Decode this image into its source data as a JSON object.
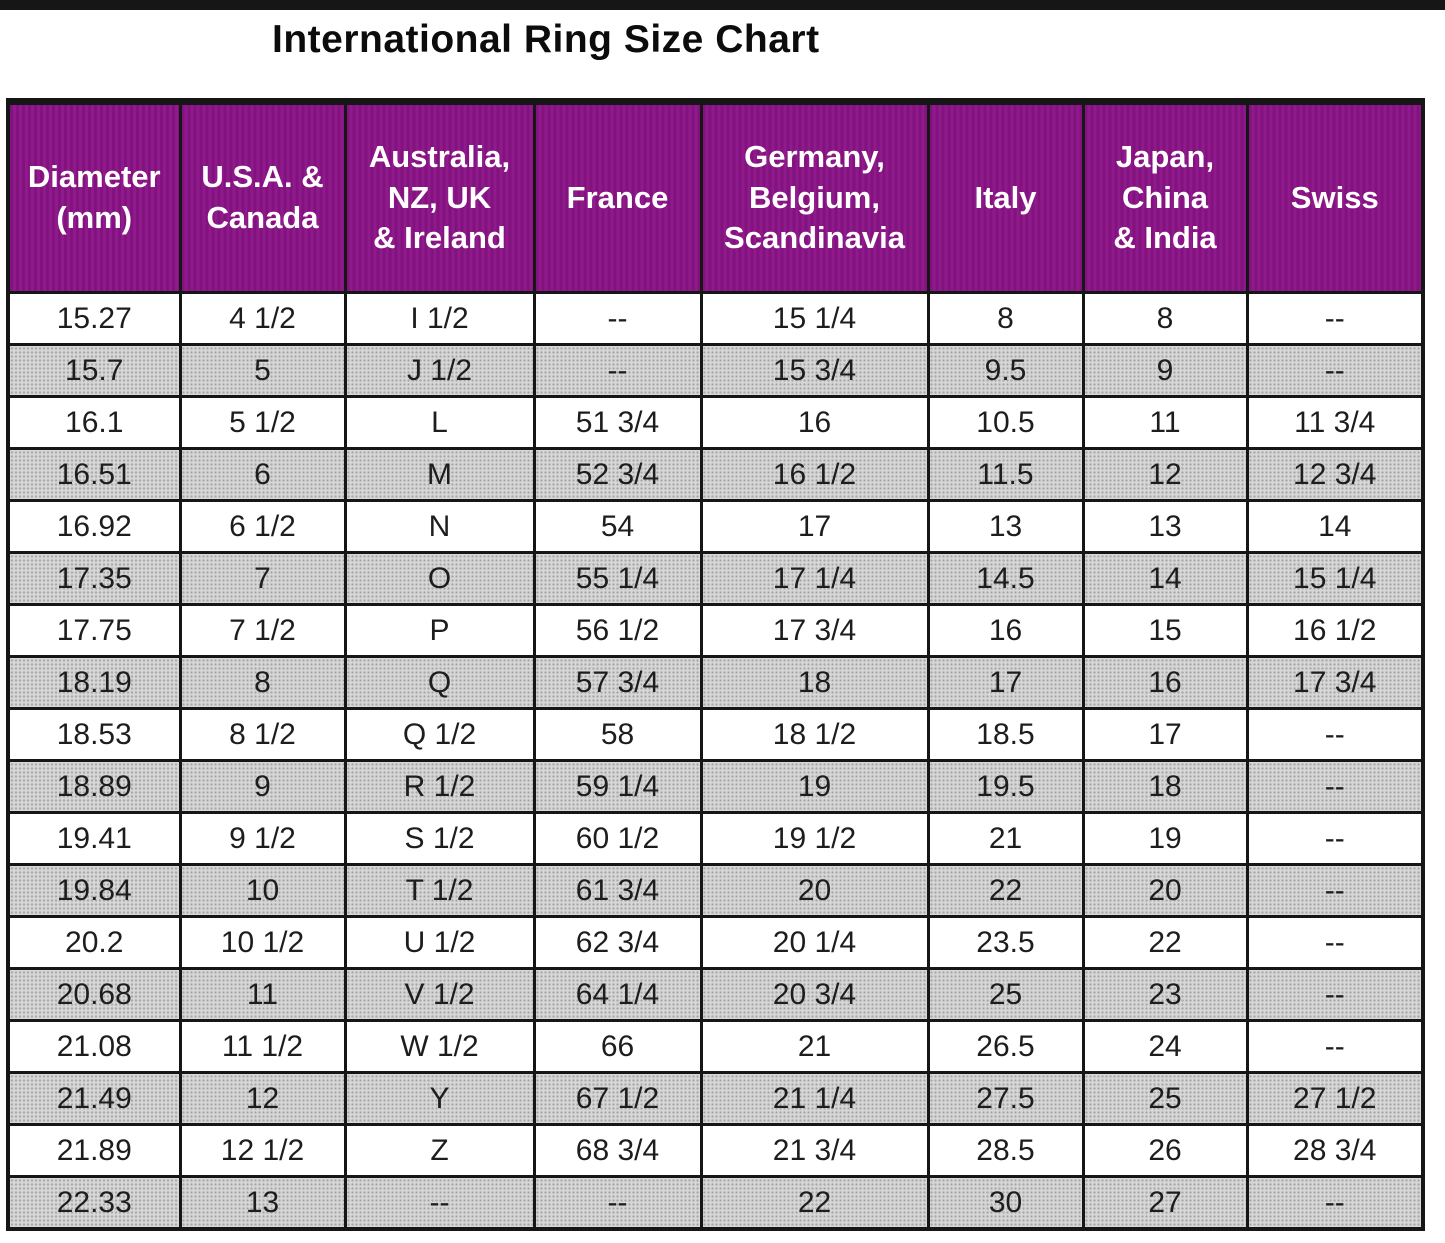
{
  "page": {
    "title": "International Ring Size Chart"
  },
  "colors": {
    "header_background": "#8B1387",
    "header_text": "#FFFFFF",
    "alt_row_background": "#D7D7D7",
    "border": "#161616",
    "body_text": "#1D1D1D"
  },
  "chart_data": {
    "type": "table",
    "title": "International Ring Size Chart",
    "grid": "on",
    "columns": [
      {
        "id": "diameter-mm",
        "lines": [
          "Diameter",
          "(mm)"
        ]
      },
      {
        "id": "usa-canada",
        "lines": [
          "U.S.A. &",
          "Canada"
        ]
      },
      {
        "id": "australia-nz-uk-ireland",
        "lines": [
          "Australia,",
          "NZ, UK",
          "& Ireland"
        ]
      },
      {
        "id": "france",
        "lines": [
          "France"
        ]
      },
      {
        "id": "germany-belgium-scandinavia",
        "lines": [
          "Germany,",
          "Belgium,",
          "Scandinavia"
        ]
      },
      {
        "id": "italy",
        "lines": [
          "Italy"
        ]
      },
      {
        "id": "japan-china-india",
        "lines": [
          "Japan,",
          "China",
          "& India"
        ]
      },
      {
        "id": "swiss",
        "lines": [
          "Swiss"
        ]
      }
    ],
    "rows": [
      [
        "15.27",
        "4 1/2",
        "I 1/2",
        "--",
        "15 1/4",
        "8",
        "8",
        "--"
      ],
      [
        "15.7",
        "5",
        "J 1/2",
        "--",
        "15 3/4",
        "9.5",
        "9",
        "--"
      ],
      [
        "16.1",
        "5 1/2",
        "L",
        "51 3/4",
        "16",
        "10.5",
        "11",
        "11 3/4"
      ],
      [
        "16.51",
        "6",
        "M",
        "52 3/4",
        "16 1/2",
        "11.5",
        "12",
        "12 3/4"
      ],
      [
        "16.92",
        "6 1/2",
        "N",
        "54",
        "17",
        "13",
        "13",
        "14"
      ],
      [
        "17.35",
        "7",
        "O",
        "55 1/4",
        "17 1/4",
        "14.5",
        "14",
        "15 1/4"
      ],
      [
        "17.75",
        "7 1/2",
        "P",
        "56 1/2",
        "17 3/4",
        "16",
        "15",
        "16 1/2"
      ],
      [
        "18.19",
        "8",
        "Q",
        "57 3/4",
        "18",
        "17",
        "16",
        "17 3/4"
      ],
      [
        "18.53",
        "8 1/2",
        "Q 1/2",
        "58",
        "18 1/2",
        "18.5",
        "17",
        "--"
      ],
      [
        "18.89",
        "9",
        "R 1/2",
        "59 1/4",
        "19",
        "19.5",
        "18",
        "--"
      ],
      [
        "19.41",
        "9 1/2",
        "S 1/2",
        "60 1/2",
        "19 1/2",
        "21",
        "19",
        "--"
      ],
      [
        "19.84",
        "10",
        "T 1/2",
        "61 3/4",
        "20",
        "22",
        "20",
        "--"
      ],
      [
        "20.2",
        "10 1/2",
        "U 1/2",
        "62 3/4",
        "20 1/4",
        "23.5",
        "22",
        "--"
      ],
      [
        "20.68",
        "11",
        "V 1/2",
        "64 1/4",
        "20 3/4",
        "25",
        "23",
        "--"
      ],
      [
        "21.08",
        "11 1/2",
        "W 1/2",
        "66",
        "21",
        "26.5",
        "24",
        "--"
      ],
      [
        "21.49",
        "12",
        "Y",
        "67 1/2",
        "21 1/4",
        "27.5",
        "25",
        "27 1/2"
      ],
      [
        "21.89",
        "12 1/2",
        "Z",
        "68 3/4",
        "21 3/4",
        "28.5",
        "26",
        "28 3/4"
      ],
      [
        "22.33",
        "13",
        "--",
        "--",
        "22",
        "30",
        "27",
        "--"
      ]
    ]
  }
}
